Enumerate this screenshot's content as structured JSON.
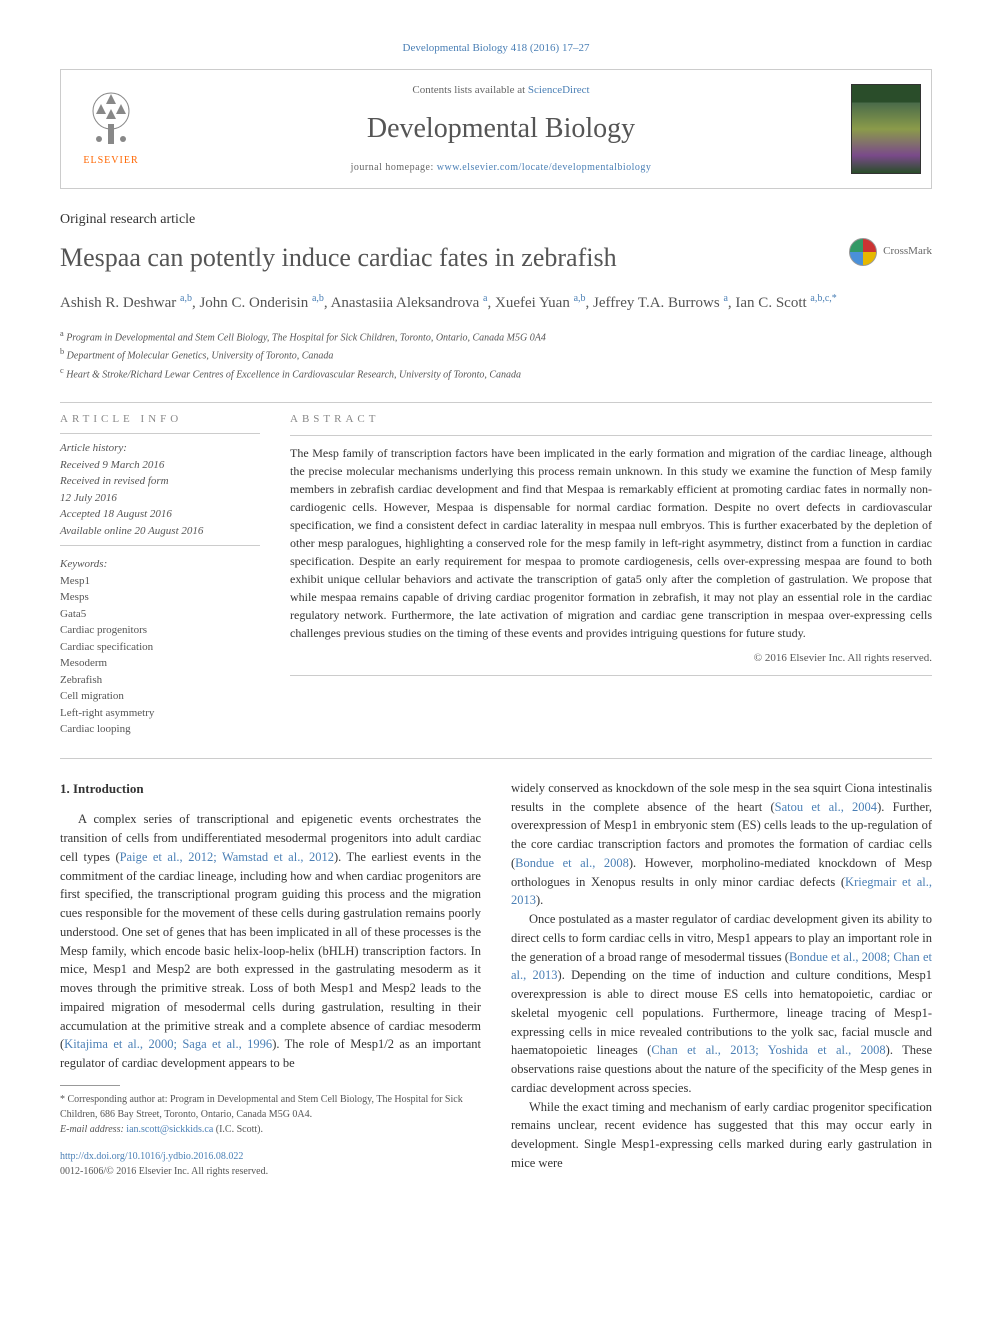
{
  "journal_ref": "Developmental Biology 418 (2016) 17–27",
  "header": {
    "contents_prefix": "Contents lists available at ",
    "contents_link": "ScienceDirect",
    "journal_name": "Developmental Biology",
    "homepage_prefix": "journal homepage: ",
    "homepage_url": "www.elsevier.com/locate/developmentalbiology",
    "elsevier": "ELSEVIER"
  },
  "article_type": "Original research article",
  "title": "Mespaa can potently induce cardiac fates in zebrafish",
  "crossmark": "CrossMark",
  "authors_html": "Ashish R. Deshwar <sup>a,b</sup>, John C. Onderisin <sup>a,b</sup>, Anastasiia Aleksandrova <sup>a</sup>, Xuefei Yuan <sup>a,b</sup>, Jeffrey T.A. Burrows <sup>a</sup>, Ian C. Scott <sup>a,b,c,*</sup>",
  "affiliations": [
    {
      "sup": "a",
      "text": "Program in Developmental and Stem Cell Biology, The Hospital for Sick Children, Toronto, Ontario, Canada M5G 0A4"
    },
    {
      "sup": "b",
      "text": "Department of Molecular Genetics, University of Toronto, Canada"
    },
    {
      "sup": "c",
      "text": "Heart & Stroke/Richard Lewar Centres of Excellence in Cardiovascular Research, University of Toronto, Canada"
    }
  ],
  "info_heading": "ARTICLE INFO",
  "abstract_heading": "ABSTRACT",
  "history": {
    "label": "Article history:",
    "received": "Received 9 March 2016",
    "revised1": "Received in revised form",
    "revised2": "12 July 2016",
    "accepted": "Accepted 18 August 2016",
    "online": "Available online 20 August 2016"
  },
  "keywords": {
    "label": "Keywords:",
    "items": [
      "Mesp1",
      "Mesps",
      "Gata5",
      "Cardiac progenitors",
      "Cardiac specification",
      "Mesoderm",
      "Zebrafish",
      "Cell migration",
      "Left-right asymmetry",
      "Cardiac looping"
    ]
  },
  "abstract": "The Mesp family of transcription factors have been implicated in the early formation and migration of the cardiac lineage, although the precise molecular mechanisms underlying this process remain unknown. In this study we examine the function of Mesp family members in zebrafish cardiac development and find that Mespaa is remarkably efficient at promoting cardiac fates in normally non-cardiogenic cells. However, Mespaa is dispensable for normal cardiac formation. Despite no overt defects in cardiovascular specification, we find a consistent defect in cardiac laterality in mespaa null embryos. This is further exacerbated by the depletion of other mesp paralogues, highlighting a conserved role for the mesp family in left-right asymmetry, distinct from a function in cardiac specification. Despite an early requirement for mespaa to promote cardiogenesis, cells over-expressing mespaa are found to both exhibit unique cellular behaviors and activate the transcription of gata5 only after the completion of gastrulation. We propose that while mespaa remains capable of driving cardiac progenitor formation in zebrafish, it may not play an essential role in the cardiac regulatory network. Furthermore, the late activation of migration and cardiac gene transcription in mespaa over-expressing cells challenges previous studies on the timing of these events and provides intriguing questions for future study.",
  "copyright": "© 2016 Elsevier Inc. All rights reserved.",
  "intro_heading": "1. Introduction",
  "col_left": {
    "p1": "A complex series of transcriptional and epigenetic events orchestrates the transition of cells from undifferentiated mesodermal progenitors into adult cardiac cell types (Paige et al., 2012; Wamstad et al., 2012). The earliest events in the commitment of the cardiac lineage, including how and when cardiac progenitors are first specified, the transcriptional program guiding this process and the migration cues responsible for the movement of these cells during gastrulation remains poorly understood. One set of genes that has been implicated in all of these processes is the Mesp family, which encode basic helix-loop-helix (bHLH) transcription factors. In mice, Mesp1 and Mesp2 are both expressed in the gastrulating mesoderm as it moves through the primitive streak. Loss of both Mesp1 and Mesp2 leads to the impaired migration of mesodermal cells during gastrulation, resulting in their accumulation at the primitive streak and a complete absence of cardiac mesoderm (Kitajima et al., 2000; Saga et al., 1996). The role of Mesp1/2 as an important regulator of cardiac development appears to be"
  },
  "col_right": {
    "p1": "widely conserved as knockdown of the sole mesp in the sea squirt Ciona intestinalis results in the complete absence of the heart (Satou et al., 2004). Further, overexpression of Mesp1 in embryonic stem (ES) cells leads to the up-regulation of the core cardiac transcription factors and promotes the formation of cardiac cells (Bondue et al., 2008). However, morpholino-mediated knockdown of Mesp orthologues in Xenopus results in only minor cardiac defects (Kriegmair et al., 2013).",
    "p2": "Once postulated as a master regulator of cardiac development given its ability to direct cells to form cardiac cells in vitro, Mesp1 appears to play an important role in the generation of a broad range of mesodermal tissues (Bondue et al., 2008; Chan et al., 2013). Depending on the time of induction and culture conditions, Mesp1 overexpression is able to direct mouse ES cells into hematopoietic, cardiac or skeletal myogenic cell populations. Furthermore, lineage tracing of Mesp1-expressing cells in mice revealed contributions to the yolk sac, facial muscle and haematopoietic lineages (Chan et al., 2013; Yoshida et al., 2008). These observations raise questions about the nature of the specificity of the Mesp genes in cardiac development across species.",
    "p3": "While the exact timing and mechanism of early cardiac progenitor specification remains unclear, recent evidence has suggested that this may occur early in development. Single Mesp1-expressing cells marked during early gastrulation in mice were"
  },
  "footnote": {
    "corr": "* Corresponding author at: Program in Developmental and Stem Cell Biology, The Hospital for Sick Children, 686 Bay Street, Toronto, Ontario, Canada M5G 0A4.",
    "email_label": "E-mail address: ",
    "email": "ian.scott@sickkids.ca",
    "email_suffix": " (I.C. Scott)."
  },
  "doi": "http://dx.doi.org/10.1016/j.ydbio.2016.08.022",
  "issn": "0012-1606/© 2016 Elsevier Inc. All rights reserved.",
  "colors": {
    "link": "#4a7fb5",
    "text": "#333333",
    "heading_muted": "#888888",
    "orange": "#ff6600"
  }
}
